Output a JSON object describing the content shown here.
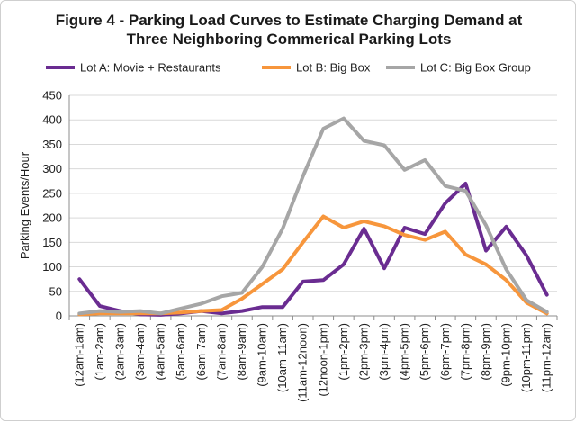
{
  "chart_data": {
    "type": "line",
    "title_line1": "Figure 4 - Parking Load Curves to Estimate Charging Demand at",
    "title_line2": "Three Neighboring Commerical Parking Lots",
    "ylabel": "Parking Events/Hour",
    "xlabel": "",
    "ylim": [
      0,
      450
    ],
    "yticks": [
      0,
      50,
      100,
      150,
      200,
      250,
      300,
      350,
      400,
      450
    ],
    "grid": "horizontal",
    "legend_position": "top",
    "categories": [
      "(12am-1am)",
      "(1am-2am)",
      "(2am-3am)",
      "(3am-4am)",
      "(4am-5am)",
      "(5am-6am)",
      "(6am-7am)",
      "(7am-8am)",
      "(8am-9am)",
      "(9am-10am)",
      "(10am-11am)",
      "(11am-12noon)",
      "(12noon-1pm)",
      "(1pm-2pm)",
      "(2pm-3pm)",
      "(3pm-4pm)",
      "(4pm-5pm)",
      "(5pm-6pm)",
      "(6pm-7pm)",
      "(7pm-8pm)",
      "(8pm-9pm)",
      "(9pm-10pm)",
      "(10pm-11pm)",
      "(11pm-12am)"
    ],
    "series": [
      {
        "name": "Lot A: Movie + Restaurants",
        "color": "#6a2c91",
        "values": [
          75,
          20,
          10,
          3,
          2,
          5,
          10,
          5,
          10,
          18,
          18,
          70,
          73,
          105,
          178,
          97,
          180,
          167,
          230,
          270,
          133,
          182,
          123,
          43
        ]
      },
      {
        "name": "Lot B: Big Box",
        "color": "#f7963c",
        "values": [
          3,
          5,
          5,
          5,
          5,
          7,
          10,
          12,
          35,
          65,
          95,
          150,
          203,
          180,
          193,
          183,
          165,
          155,
          172,
          125,
          105,
          73,
          27,
          5
        ]
      },
      {
        "name": "Lot C: Big Box Group",
        "color": "#a6a6a6",
        "values": [
          5,
          10,
          8,
          10,
          5,
          15,
          25,
          40,
          47,
          100,
          178,
          285,
          382,
          403,
          357,
          348,
          298,
          318,
          265,
          255,
          185,
          95,
          32,
          8
        ]
      }
    ]
  }
}
